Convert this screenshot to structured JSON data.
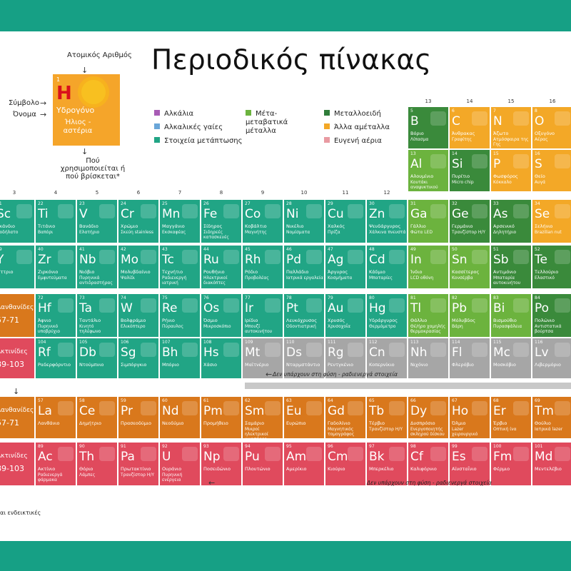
{
  "title": "Περιοδικός πίνακας",
  "key": {
    "atomic_number_label": "Ατομικός Αριθμός",
    "symbol_label": "Σύμβολο",
    "name_label": "Όνομα",
    "use_label": "Πού χρησιμοποιείται ή πού βρίσκεται*",
    "sample": {
      "number": "1",
      "symbol": "H",
      "name": "Υδρογόνο",
      "use": "Ήλιος - αστέρια"
    }
  },
  "legend": [
    {
      "label": "Αλκάλια",
      "color": "#a85cb5"
    },
    {
      "label": "Αλκαλικές γαίες",
      "color": "#6aa6d8"
    },
    {
      "label": "Στοιχεία μετάπτωσης",
      "color": "#21a585"
    },
    {
      "label": "Μέτα-μεταβατικά μέταλλα",
      "color": "#6cb33e"
    },
    {
      "label": "Μεταλλοειδή",
      "color": "#2f7d3a"
    },
    {
      "label": "Άλλα αμέταλλα",
      "color": "#f3a827"
    },
    {
      "label": "Ευγενή αέρια",
      "color": "#e99aa2"
    }
  ],
  "column_numbers": [
    "3",
    "4",
    "5",
    "6",
    "7",
    "8",
    "9",
    "10",
    "11",
    "12",
    "13",
    "14",
    "15",
    "16"
  ],
  "row4": [
    {
      "n": "21",
      "s": "Sc",
      "name": "Σκάνδιο",
      "use": "Ποδήλατο",
      "cls": "c-tm"
    },
    {
      "n": "22",
      "s": "Ti",
      "name": "Τιτάνιο",
      "use": "Βαπόρι",
      "cls": "c-tm"
    },
    {
      "n": "23",
      "s": "V",
      "name": "Βανάδιο",
      "use": "Ελατήριο",
      "cls": "c-tm"
    },
    {
      "n": "24",
      "s": "Cr",
      "name": "Χρώμιο",
      "use": "Σκεύη stainless",
      "cls": "c-tm"
    },
    {
      "n": "25",
      "s": "Mn",
      "name": "Μαγγάνιο",
      "use": "Εκσκαφέας",
      "cls": "c-tm"
    },
    {
      "n": "26",
      "s": "Fe",
      "name": "Σίδηρος",
      "use": "Σιδηρεές κατασκευές",
      "cls": "c-tm"
    },
    {
      "n": "27",
      "s": "Co",
      "name": "Κοβάλτιο",
      "use": "Μαγνήτης",
      "cls": "c-tm"
    },
    {
      "n": "28",
      "s": "Ni",
      "name": "Νικέλιο",
      "use": "Νομίσματα",
      "cls": "c-tm"
    },
    {
      "n": "29",
      "s": "Cu",
      "name": "Χαλκός",
      "use": "Πρίζα",
      "cls": "c-tm"
    },
    {
      "n": "30",
      "s": "Zn",
      "name": "Ψευδάργυρος",
      "use": "Χάλκινα πνευστά",
      "cls": "c-tm"
    },
    {
      "n": "31",
      "s": "Ga",
      "name": "Γάλλιο",
      "use": "Φώτα LED",
      "cls": "c-pt"
    },
    {
      "n": "32",
      "s": "Ge",
      "name": "Γερμάνιο",
      "use": "Τρανζίστορ Η/Υ",
      "cls": "c-md"
    },
    {
      "n": "33",
      "s": "As",
      "name": "Αρσενικό",
      "use": "Δηλητήριο",
      "cls": "c-md"
    },
    {
      "n": "34",
      "s": "Se",
      "name": "Σελήνιο",
      "use": "Brazilian nut",
      "cls": "c-nm"
    }
  ],
  "row5": [
    {
      "n": "39",
      "s": "Y",
      "name": "Ύττριο",
      "use": "",
      "cls": "c-tm"
    },
    {
      "n": "40",
      "s": "Zr",
      "name": "Ζιρκόνιο",
      "use": "Εμφυτεύματα",
      "cls": "c-tm"
    },
    {
      "n": "41",
      "s": "Nb",
      "name": "Νιόβιο",
      "use": "Πυρηνικά αντιδραστήρας",
      "cls": "c-tm"
    },
    {
      "n": "42",
      "s": "Mo",
      "name": "Μολυβδαίνιο",
      "use": "Ψαλίδι",
      "cls": "c-tm"
    },
    {
      "n": "43",
      "s": "Tc",
      "name": "Τεχνήτιο",
      "use": "Ραδιενεργή ιατρική",
      "cls": "c-tm"
    },
    {
      "n": "44",
      "s": "Ru",
      "name": "Ρουθήνιο",
      "use": "Ηλεκτρικοί διακόπτες",
      "cls": "c-tm"
    },
    {
      "n": "45",
      "s": "Rh",
      "name": "Ρόδιο",
      "use": "Προβολέας",
      "cls": "c-tm"
    },
    {
      "n": "46",
      "s": "Pd",
      "name": "Παλλάδιο",
      "use": "Ιατρικά εργαλεία",
      "cls": "c-tm"
    },
    {
      "n": "47",
      "s": "Ag",
      "name": "Άργυρος",
      "use": "Κοσμήματα",
      "cls": "c-tm"
    },
    {
      "n": "48",
      "s": "Cd",
      "name": "Κάδμιο",
      "use": "Μπαταρίες",
      "cls": "c-tm"
    },
    {
      "n": "49",
      "s": "In",
      "name": "Ίνδιο",
      "use": "LCD οθόνη",
      "cls": "c-pt"
    },
    {
      "n": "50",
      "s": "Sn",
      "name": "Κασσίτερος",
      "use": "Κονσέρβα",
      "cls": "c-pt"
    },
    {
      "n": "51",
      "s": "Sb",
      "name": "Αντιμόνιο",
      "use": "Μπαταρία αυτοκινήτου",
      "cls": "c-md"
    },
    {
      "n": "52",
      "s": "Te",
      "name": "Τελλούριο",
      "use": "Ελαστικό",
      "cls": "c-md"
    }
  ],
  "row6": [
    {
      "n": "",
      "s": "",
      "name": "Λανθανίδες",
      "use": "57-71",
      "cls": "c-ln"
    },
    {
      "n": "72",
      "s": "Hf",
      "name": "Άφνιο",
      "use": "Πυρηνικό υποβρύχιο",
      "cls": "c-tm"
    },
    {
      "n": "73",
      "s": "Ta",
      "name": "Ταντάλιο",
      "use": "Κινητό τηλέφωνο",
      "cls": "c-tm"
    },
    {
      "n": "74",
      "s": "W",
      "name": "Βολφράμιο",
      "use": "Ελικόπτερο",
      "cls": "c-tm"
    },
    {
      "n": "75",
      "s": "Re",
      "name": "Ρήνιο",
      "use": "Πύραυλος",
      "cls": "c-tm"
    },
    {
      "n": "76",
      "s": "Os",
      "name": "Όσμιο",
      "use": "Μικροσκόπιο",
      "cls": "c-tm"
    },
    {
      "n": "77",
      "s": "Ir",
      "name": "Ιρίδιο",
      "use": "Μπουζί αυτοκινήτου",
      "cls": "c-tm"
    },
    {
      "n": "78",
      "s": "Pt",
      "name": "Λευκόχρυσος",
      "use": "Οδοντιατρική",
      "cls": "c-tm"
    },
    {
      "n": "79",
      "s": "Au",
      "name": "Χρυσός",
      "use": "Χρυσοχοΐα",
      "cls": "c-tm"
    },
    {
      "n": "80",
      "s": "Hg",
      "name": "Υδράργυρος",
      "use": "Θερμόμετρο",
      "cls": "c-tm"
    },
    {
      "n": "81",
      "s": "Tl",
      "name": "Θάλλιο",
      "use": "Θέ/ήρο χαμηλής θερμοκρασίας",
      "cls": "c-pt"
    },
    {
      "n": "82",
      "s": "Pb",
      "name": "Μόλυβδος",
      "use": "Βάρη",
      "cls": "c-pt"
    },
    {
      "n": "83",
      "s": "Bi",
      "name": "Βισμούθιο",
      "use": "Πυρασφάλεια",
      "cls": "c-pt"
    },
    {
      "n": "84",
      "s": "Po",
      "name": "Πολώνιο",
      "use": "Αντιστατικά βούρτσα",
      "cls": "c-md"
    }
  ],
  "row7": [
    {
      "n": "",
      "s": "",
      "name": "Ακτινίδες",
      "use": "89-103",
      "cls": "c-ac"
    },
    {
      "n": "104",
      "s": "Rf",
      "name": "Ραδερφόρντιο",
      "use": "",
      "cls": "c-tm"
    },
    {
      "n": "105",
      "s": "Db",
      "name": "Ντούμπνιο",
      "use": "",
      "cls": "c-tm"
    },
    {
      "n": "106",
      "s": "Sg",
      "name": "Σιμπόργκιο",
      "use": "",
      "cls": "c-tm"
    },
    {
      "n": "107",
      "s": "Bh",
      "name": "Μπόριο",
      "use": "",
      "cls": "c-tm"
    },
    {
      "n": "108",
      "s": "Hs",
      "name": "Χάσιο",
      "use": "",
      "cls": "c-tm"
    },
    {
      "n": "109",
      "s": "Mt",
      "name": "Μαϊτνέριο",
      "use": "",
      "cls": "c-syn"
    },
    {
      "n": "110",
      "s": "Ds",
      "name": "Νταρμστάντιο",
      "use": "",
      "cls": "c-syn"
    },
    {
      "n": "111",
      "s": "Rg",
      "name": "Ρεντγκένιο",
      "use": "",
      "cls": "c-syn"
    },
    {
      "n": "112",
      "s": "Cn",
      "name": "Κοπερνίκιο",
      "use": "",
      "cls": "c-syn"
    },
    {
      "n": "113",
      "s": "Nh",
      "name": "Νιχόνιο",
      "use": "",
      "cls": "c-syn"
    },
    {
      "n": "114",
      "s": "Fl",
      "name": "Φλερόβιο",
      "use": "",
      "cls": "c-syn"
    },
    {
      "n": "115",
      "s": "Mc",
      "name": "Μοσκόβιο",
      "use": "",
      "cls": "c-syn"
    },
    {
      "n": "116",
      "s": "Lv",
      "name": "Λιβερμόριο",
      "use": "",
      "cls": "c-syn"
    }
  ],
  "top_right": [
    {
      "n": "5",
      "s": "B",
      "name": "Βόριο",
      "use": "Λίπασμα",
      "cls": "c-md"
    },
    {
      "n": "6",
      "s": "C",
      "name": "Άνθρακας",
      "use": "Γραφίτης",
      "cls": "c-nm"
    },
    {
      "n": "7",
      "s": "N",
      "name": "Άζωτο",
      "use": "Ατμόσφαιρα της Γης",
      "cls": "c-nm"
    },
    {
      "n": "8",
      "s": "O",
      "name": "Οξυγόνο",
      "use": "Αέρας",
      "cls": "c-nm"
    },
    {
      "n": "13",
      "s": "Al",
      "name": "Αλουμίνιο",
      "use": "Κουτάκι αναψυκτικού",
      "cls": "c-pt"
    },
    {
      "n": "14",
      "s": "Si",
      "name": "Πυρίτιο",
      "use": "Micro chip",
      "cls": "c-md"
    },
    {
      "n": "15",
      "s": "P",
      "name": "Φωσφόρος",
      "use": "Κόκκαλο",
      "cls": "c-nm"
    },
    {
      "n": "16",
      "s": "S",
      "name": "Θείο",
      "use": "Αυγά",
      "cls": "c-nm"
    }
  ],
  "group_labels": [
    "13",
    "14",
    "15",
    "16"
  ],
  "note_synthetic": "Δεν υπάρχουν στη φύση - ραδιενεργά στοιχεία",
  "lanthanides": [
    {
      "n": "",
      "s": "",
      "name": "Λανθανίδες",
      "use": "57-71",
      "cls": "c-ln"
    },
    {
      "n": "57",
      "s": "La",
      "name": "Λανθάνιο",
      "use": "",
      "cls": "c-ln"
    },
    {
      "n": "58",
      "s": "Ce",
      "name": "Δημήτριο",
      "use": "",
      "cls": "c-ln"
    },
    {
      "n": "59",
      "s": "Pr",
      "name": "Πρασεοδύμιο",
      "use": "",
      "cls": "c-ln"
    },
    {
      "n": "60",
      "s": "Nd",
      "name": "Νεοδύμιο",
      "use": "",
      "cls": "c-ln"
    },
    {
      "n": "61",
      "s": "Pm",
      "name": "Προμήθειο",
      "use": "",
      "cls": "c-ln"
    },
    {
      "n": "62",
      "s": "Sm",
      "name": "Σαμάριο",
      "use": "Μικροί ηλεκτρικοί κινητήρες",
      "cls": "c-ln"
    },
    {
      "n": "63",
      "s": "Eu",
      "name": "Ευρώπιο",
      "use": "",
      "cls": "c-ln"
    },
    {
      "n": "64",
      "s": "Gd",
      "name": "Γαδολίνιο",
      "use": "Μαγνητικός τομογράφος",
      "cls": "c-ln"
    },
    {
      "n": "65",
      "s": "Tb",
      "name": "Τέρβιο",
      "use": "Τρανζίστορ Η/Υ",
      "cls": "c-ln"
    },
    {
      "n": "66",
      "s": "Dy",
      "name": "Δυσπρόσιο",
      "use": "Ενεργοποιητής σκληρού δίσκου",
      "cls": "c-ln"
    },
    {
      "n": "67",
      "s": "Ho",
      "name": "Όλμιο",
      "use": "Lazer χειρουργικό",
      "cls": "c-ln"
    },
    {
      "n": "68",
      "s": "Er",
      "name": "Έρβιο",
      "use": "Οπτική ίνα",
      "cls": "c-ln"
    },
    {
      "n": "69",
      "s": "Tm",
      "name": "Θούλιο",
      "use": "Ιατρικά lazer",
      "cls": "c-ln"
    }
  ],
  "actinides": [
    {
      "n": "",
      "s": "",
      "name": "Ακτινίδες",
      "use": "89-103",
      "cls": "c-ac"
    },
    {
      "n": "89",
      "s": "Ac",
      "name": "Ακτίνιο",
      "use": "Ραδιενεργά φάρμακα",
      "cls": "c-ac"
    },
    {
      "n": "90",
      "s": "Th",
      "name": "Θόριο",
      "use": "Λάμπες",
      "cls": "c-ac"
    },
    {
      "n": "91",
      "s": "Pa",
      "name": "Πρωτακτίνιο",
      "use": "Τρανζίστορ Η/Υ",
      "cls": "c-ac"
    },
    {
      "n": "92",
      "s": "U",
      "name": "Ουράνιο",
      "use": "Πυρηνική ενέργεια",
      "cls": "c-ac"
    },
    {
      "n": "93",
      "s": "Np",
      "name": "Ποσειδώνιο",
      "use": "",
      "cls": "c-ac"
    },
    {
      "n": "94",
      "s": "Pu",
      "name": "Πλουτώνιο",
      "use": "",
      "cls": "c-ac"
    },
    {
      "n": "95",
      "s": "Am",
      "name": "Αμερίκιο",
      "use": "",
      "cls": "c-ac"
    },
    {
      "n": "96",
      "s": "Cm",
      "name": "Κιούριο",
      "use": "",
      "cls": "c-ac"
    },
    {
      "n": "97",
      "s": "Bk",
      "name": "Μπερκέλιο",
      "use": "",
      "cls": "c-ac"
    },
    {
      "n": "98",
      "s": "Cf",
      "name": "Καλιφόρνιο",
      "use": "",
      "cls": "c-ac"
    },
    {
      "n": "99",
      "s": "Es",
      "name": "Αϊνσταΐνιο",
      "use": "",
      "cls": "c-ac"
    },
    {
      "n": "100",
      "s": "Fm",
      "name": "Φέρμιο",
      "use": "",
      "cls": "c-ac"
    },
    {
      "n": "101",
      "s": "Md",
      "name": "Μεντελέβιο",
      "use": "",
      "cls": "c-ac"
    }
  ],
  "footnote": "αι ενδεικτικές"
}
